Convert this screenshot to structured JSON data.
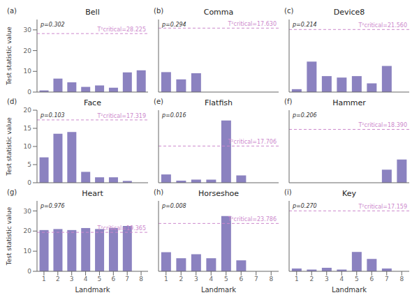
{
  "chart_data": [
    {
      "type": "bar",
      "label": "(a)",
      "title": "Bell",
      "categories": [
        1,
        2,
        3,
        4,
        5,
        6,
        7,
        8
      ],
      "values": [
        0.8,
        6.5,
        4.7,
        2.5,
        3.2,
        2.1,
        9.5,
        10.5
      ],
      "color": "#8b82c0",
      "ylim": [
        0,
        35
      ],
      "yticks": [
        0,
        10,
        20,
        30
      ],
      "ylabel": "Test statistic value",
      "tick_labels": "y",
      "grid": false,
      "annotations": [
        "p=0.302"
      ],
      "reference_line": {
        "value": 28.225,
        "label": "T²critical=28.225",
        "color": "#cc88cc",
        "line_style": "dashed"
      }
    },
    {
      "type": "bar",
      "label": "(b)",
      "title": "Comma",
      "categories": [
        1,
        2,
        3,
        4,
        5,
        6,
        7,
        8
      ],
      "values": [
        5.5,
        3.5,
        5.2,
        0,
        0,
        0,
        0,
        0
      ],
      "color": "#8b82c0",
      "ylim": [
        0,
        20
      ],
      "yticks": [
        0,
        5,
        10,
        15,
        20
      ],
      "tick_labels": false,
      "grid": false,
      "annotations": [
        "p=0.294"
      ],
      "reference_line": {
        "value": 17.63,
        "label": "T²critical=17.630",
        "color": "#cc88cc",
        "line_style": "dashed"
      }
    },
    {
      "type": "bar",
      "label": "(c)",
      "title": "Device8",
      "categories": [
        1,
        2,
        3,
        4,
        5,
        6,
        7,
        8
      ],
      "values": [
        1.0,
        10.5,
        5.5,
        5.0,
        5.5,
        3.0,
        9.0,
        0
      ],
      "color": "#8b82c0",
      "ylim": [
        0,
        25
      ],
      "yticks": [
        0,
        5,
        10,
        15,
        20,
        25
      ],
      "tick_labels": false,
      "grid": false,
      "annotations": [
        "p=0.214"
      ],
      "reference_line": {
        "value": 21.56,
        "label": "T²critical=21.560",
        "color": "#cc88cc",
        "line_style": "dashed"
      }
    },
    {
      "type": "bar",
      "label": "(d)",
      "title": "Face",
      "categories": [
        1,
        2,
        3,
        4,
        5,
        6,
        7,
        8
      ],
      "values": [
        7.0,
        13.5,
        14.0,
        3.0,
        1.5,
        1.5,
        0.5,
        0
      ],
      "color": "#8b82c0",
      "ylim": [
        0,
        20
      ],
      "yticks": [
        0,
        5,
        10,
        15,
        20
      ],
      "ylabel": "Test statistic value",
      "tick_labels": "y",
      "grid": false,
      "annotations": [
        "p=0.103"
      ],
      "reference_line": {
        "value": 17.319,
        "label": "T²critical=17.319",
        "color": "#cc88cc",
        "line_style": "dashed"
      }
    },
    {
      "type": "bar",
      "label": "(e)",
      "title": "Flatfish",
      "categories": [
        1,
        2,
        3,
        4,
        5,
        6,
        7,
        8
      ],
      "values": [
        4.0,
        1.0,
        1.5,
        1.5,
        30.0,
        3.5,
        0,
        0
      ],
      "color": "#8b82c0",
      "ylim": [
        0,
        35
      ],
      "yticks": [
        0,
        10,
        20,
        30
      ],
      "tick_labels": false,
      "grid": false,
      "annotations": [
        "p=0.016"
      ],
      "reference_line": {
        "value": 17.706,
        "label": "T²critical=17.706",
        "color": "#cc88cc",
        "line_style": "dashed"
      }
    },
    {
      "type": "bar",
      "label": "(f)",
      "title": "Hammer",
      "categories": [
        1,
        2,
        3,
        4,
        5,
        6,
        7,
        8
      ],
      "values": [
        0,
        0,
        0,
        0,
        0,
        0,
        4.5,
        8.0
      ],
      "color": "#8b82c0",
      "ylim": [
        0,
        25
      ],
      "yticks": [
        0,
        5,
        10,
        15,
        20,
        25
      ],
      "tick_labels": false,
      "grid": false,
      "annotations": [
        "p=0.206"
      ],
      "reference_line": {
        "value": 18.39,
        "label": "T²critical=18.390",
        "color": "#cc88cc",
        "line_style": "dashed"
      }
    },
    {
      "type": "bar",
      "label": "(g)",
      "title": "Heart",
      "categories": [
        1,
        2,
        3,
        4,
        5,
        6,
        7,
        8
      ],
      "values": [
        20.5,
        21.0,
        20.5,
        21.5,
        21.0,
        21.5,
        22.5,
        0
      ],
      "color": "#8b82c0",
      "ylim": [
        0,
        35
      ],
      "yticks": [
        0,
        10,
        20,
        30
      ],
      "ylabel": "Test statistic value",
      "xlabel": "Landmark",
      "grid": false,
      "annotations": [
        "p=0.976"
      ],
      "reference_line": {
        "value": 19.365,
        "label": "T²critical=19.365",
        "color": "#cc88cc",
        "line_style": "dashed"
      }
    },
    {
      "type": "bar",
      "label": "(h)",
      "title": "Horseshoe",
      "categories": [
        1,
        2,
        3,
        4,
        5,
        6,
        7,
        8
      ],
      "values": [
        9.5,
        6.5,
        8.5,
        6.5,
        27.5,
        5.5,
        0,
        0
      ],
      "color": "#8b82c0",
      "ylim": [
        0,
        35
      ],
      "yticks": [
        0,
        10,
        20,
        30
      ],
      "xlabel": "Landmark",
      "tick_labels": "x",
      "grid": false,
      "annotations": [
        "p=0.008"
      ],
      "reference_line": {
        "value": 23.786,
        "label": "T²critical=23.786",
        "color": "#cc88cc",
        "line_style": "dashed"
      }
    },
    {
      "type": "bar",
      "label": "(i)",
      "title": "Key",
      "categories": [
        1,
        2,
        3,
        4,
        5,
        6,
        7,
        8
      ],
      "values": [
        0.8,
        0.5,
        1.0,
        0.5,
        5.5,
        3.5,
        0.8,
        0
      ],
      "color": "#8b82c0",
      "ylim": [
        0,
        20
      ],
      "yticks": [
        0,
        5,
        10,
        15,
        20
      ],
      "xlabel": "Landmark",
      "tick_labels": "x",
      "grid": false,
      "annotations": [
        "p=0.270"
      ],
      "reference_line": {
        "value": 17.159,
        "label": "T²critical=17.159",
        "color": "#cc88cc",
        "line_style": "dashed"
      }
    }
  ]
}
